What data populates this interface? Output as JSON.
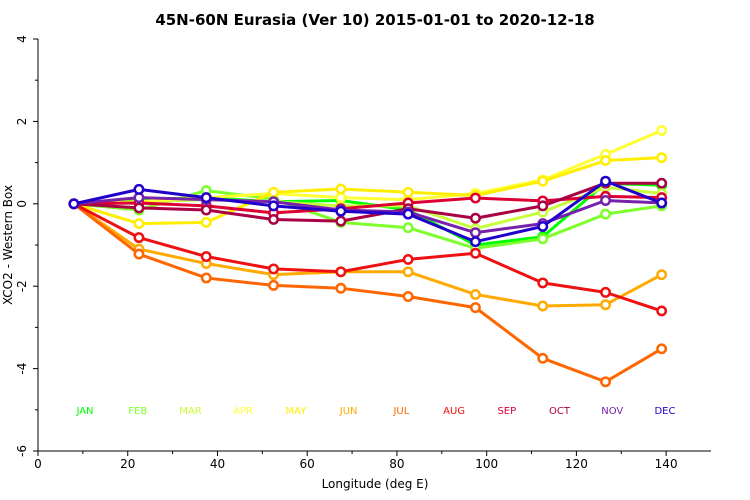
{
  "chart_data": {
    "type": "line",
    "title": "45N-60N Eurasia (Ver 10)   2015-01-01 to 2020-12-18",
    "xlabel": "Longitude (deg E)",
    "ylabel": "XCO2 - Western Box",
    "xlim": [
      0,
      150
    ],
    "ylim": [
      -6,
      4
    ],
    "xticks": [
      0,
      20,
      40,
      60,
      80,
      100,
      120,
      140
    ],
    "yticks": [
      -6,
      -4,
      -2,
      0,
      2,
      4
    ],
    "grid": false,
    "legend_placement": "bottom-inside",
    "x": [
      8,
      22.5,
      37.5,
      52.5,
      67.5,
      82.5,
      97.5,
      112.5,
      126.5,
      139
    ],
    "series": [
      {
        "name": "JAN",
        "color": "#00ff00",
        "values": [
          0,
          0.1,
          0.15,
          0.05,
          0.08,
          -0.15,
          -1.0,
          -0.8,
          0.5,
          0.45
        ]
      },
      {
        "name": "FEB",
        "color": "#7cff2a",
        "values": [
          0,
          -0.15,
          0.32,
          0.12,
          -0.45,
          -0.58,
          -1.08,
          -0.85,
          -0.25,
          -0.05
        ]
      },
      {
        "name": "MAR",
        "color": "#c8ff3c",
        "values": [
          0,
          0.05,
          0.1,
          0.05,
          -0.05,
          -0.05,
          -0.6,
          -0.2,
          0.4,
          0.25
        ]
      },
      {
        "name": "APR",
        "color": "#ffff33",
        "values": [
          0,
          0.05,
          0.15,
          0.25,
          0.15,
          0.1,
          0.25,
          0.58,
          1.2,
          1.78
        ]
      },
      {
        "name": "MAY",
        "color": "#ffee00",
        "values": [
          0,
          -0.48,
          -0.45,
          0.28,
          0.36,
          0.28,
          0.2,
          0.55,
          1.05,
          1.12
        ]
      },
      {
        "name": "JUN",
        "color": "#ffaa00",
        "values": [
          0,
          -1.1,
          -1.45,
          -1.72,
          -1.65,
          -1.65,
          -2.2,
          -2.48,
          -2.45,
          -1.72
        ]
      },
      {
        "name": "JUL",
        "color": "#ff6600",
        "values": [
          0,
          -1.22,
          -1.8,
          -1.98,
          -2.05,
          -2.25,
          -2.52,
          -3.75,
          -4.32,
          -3.52
        ]
      },
      {
        "name": "AUG",
        "color": "#ee1111",
        "values": [
          0,
          -0.82,
          -1.28,
          -1.58,
          -1.65,
          -1.35,
          -1.2,
          -1.92,
          -2.15,
          -2.6
        ]
      },
      {
        "name": "SEP",
        "color": "#dd0033",
        "values": [
          0,
          0.02,
          -0.05,
          -0.22,
          -0.12,
          0.02,
          0.14,
          0.07,
          0.18,
          0.15
        ]
      },
      {
        "name": "OCT",
        "color": "#aa0044",
        "values": [
          0,
          -0.1,
          -0.15,
          -0.38,
          -0.42,
          -0.12,
          -0.35,
          -0.05,
          0.5,
          0.5
        ]
      },
      {
        "name": "NOV",
        "color": "#7722aa",
        "values": [
          0,
          0.15,
          0.1,
          0.05,
          -0.15,
          -0.2,
          -0.7,
          -0.48,
          0.08,
          0.02
        ]
      },
      {
        "name": "DEC",
        "color": "#2200cc",
        "values": [
          0,
          0.35,
          0.15,
          -0.05,
          -0.18,
          -0.25,
          -0.92,
          -0.55,
          0.55,
          0.02
        ]
      }
    ]
  }
}
